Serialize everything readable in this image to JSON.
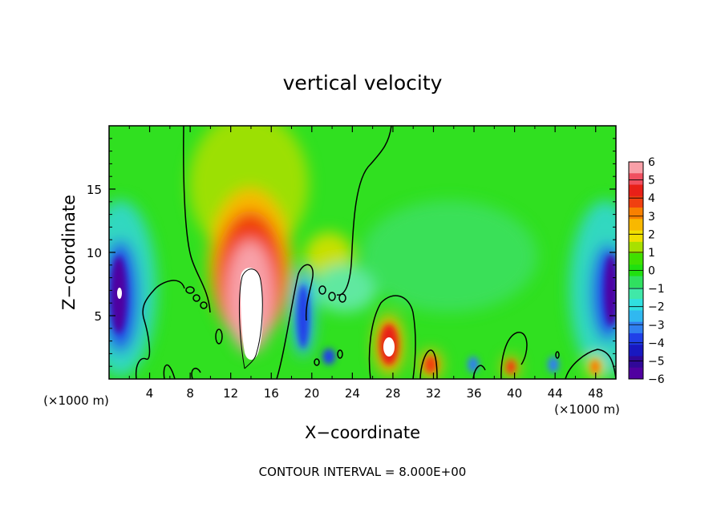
{
  "chart_data": {
    "type": "heatmap",
    "title": "vertical velocity",
    "xlabel": "X−coordinate",
    "ylabel": "Z−coordinate",
    "x_unit": "(×1000 m)",
    "x_unit_right": "(×1000 m)",
    "xlim": [
      0,
      50
    ],
    "ylim": [
      0,
      20
    ],
    "x_ticks": [
      4,
      8,
      12,
      16,
      20,
      24,
      28,
      32,
      36,
      40,
      44,
      48
    ],
    "y_ticks": [
      5,
      10,
      15
    ],
    "colorbar": {
      "range": [
        -6,
        6
      ],
      "ticks": [
        "6",
        "5",
        "4",
        "3",
        "2",
        "1",
        "0",
        "−1",
        "−2",
        "−3",
        "−4",
        "−5",
        "−6"
      ],
      "colors": [
        "#f8a0a8",
        "#f05060",
        "#e82018",
        "#f04010",
        "#f88000",
        "#f8b800",
        "#f0e000",
        "#a8e000",
        "#40e000",
        "#20e010",
        "#30e060",
        "#40e8a8",
        "#30e0e0",
        "#30b8f0",
        "#3080f0",
        "#2040e8",
        "#1818c0",
        "#300898",
        "#5000a0"
      ]
    },
    "features": [
      {
        "kind": "updraft_core",
        "x": 13.5,
        "z": 6,
        "value": 6.5
      },
      {
        "kind": "updraft",
        "x": 28,
        "z": 2.5,
        "value": 4
      },
      {
        "kind": "updraft",
        "x": 31.5,
        "z": 1.2,
        "value": 3
      },
      {
        "kind": "updraft",
        "x": 40,
        "z": 1.2,
        "value": 3
      },
      {
        "kind": "updraft",
        "x": 47.5,
        "z": 1.2,
        "value": 3
      },
      {
        "kind": "downdraft",
        "x": 19,
        "z": 4,
        "value": -4.5
      },
      {
        "kind": "downdraft",
        "x": 0.5,
        "z": 7,
        "value": -6
      },
      {
        "kind": "downdraft",
        "x": 49.5,
        "z": 7,
        "value": -6
      }
    ],
    "footer": "CONTOUR INTERVAL = 8.000E+00"
  }
}
